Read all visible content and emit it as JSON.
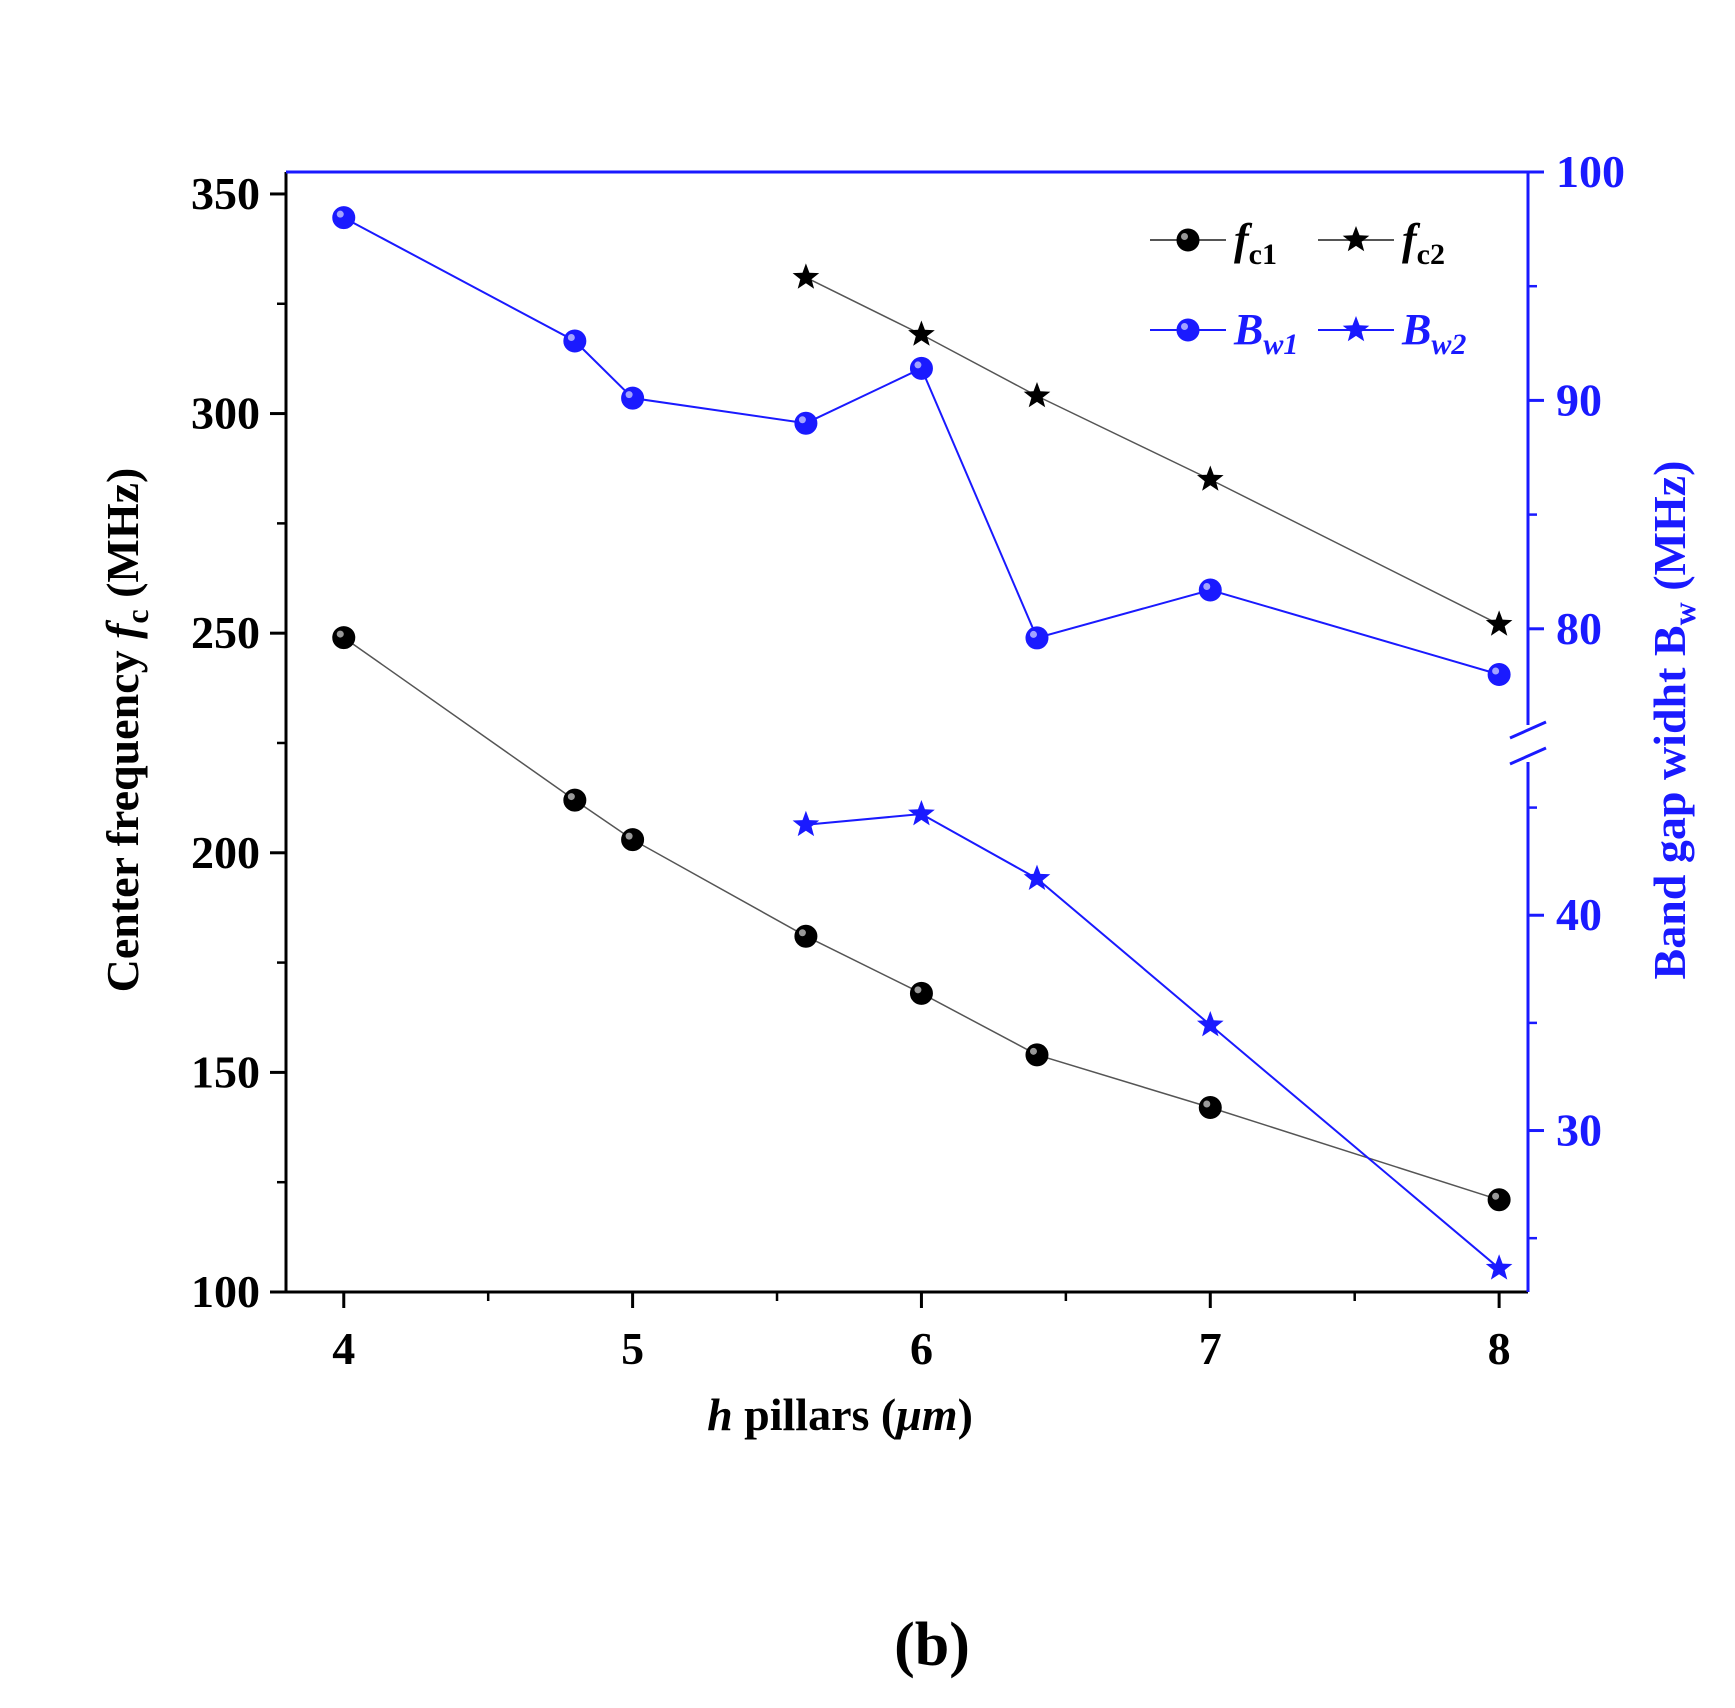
{
  "colors": {
    "left_axis": "#000000",
    "right_axis": "#1a1aff",
    "fc_series": "#000000",
    "bw_series": "#1a1aff",
    "fc_line": "#555555"
  },
  "chart_data": {
    "type": "line",
    "panel_label": "(b)",
    "xlabel": {
      "italic_part": "h",
      "regular_part": " pillars (",
      "unit": "μm",
      "close": ")"
    },
    "ylabel_left": {
      "prefix": "Center frequency ",
      "symbol": "f",
      "subscript": "c",
      "unit": " (MHz)"
    },
    "ylabel_right": {
      "prefix": "Band gap widht B",
      "subscript": "w",
      "unit": "  (MHz)"
    },
    "xlim": [
      3.8,
      8.1
    ],
    "xticks": [
      4,
      5,
      6,
      7,
      8
    ],
    "ylim_left": [
      100,
      355
    ],
    "yticks_left": [
      100,
      150,
      200,
      250,
      300,
      350
    ],
    "right_axis": {
      "upper_segment": {
        "range": [
          75,
          100
        ],
        "ticks": [
          80,
          90,
          100
        ]
      },
      "lower_segment": {
        "range": [
          22.5,
          48
        ],
        "ticks": [
          30,
          40
        ]
      },
      "break_symbol": "//"
    },
    "series": [
      {
        "name": "f_c1",
        "label_main": "f",
        "label_sub": "c1",
        "axis": "left",
        "marker": "circle",
        "x": [
          4,
          4.8,
          5,
          5.6,
          6,
          6.4,
          7,
          8
        ],
        "y": [
          249,
          212,
          203,
          181,
          168,
          154,
          142,
          121
        ]
      },
      {
        "name": "f_c2",
        "label_main": "f",
        "label_sub": "c2",
        "axis": "left",
        "marker": "star",
        "x": [
          5.6,
          6,
          6.4,
          7,
          8
        ],
        "y": [
          331,
          318,
          304,
          285,
          252
        ]
      },
      {
        "name": "B_w1",
        "label_main": "B",
        "label_sub": "w1",
        "axis": "right",
        "marker": "circle",
        "x": [
          4,
          4.8,
          5,
          5.6,
          6,
          6.4,
          7,
          8
        ],
        "y": [
          98,
          92.6,
          90.1,
          89,
          91.4,
          79.6,
          81.7,
          78
        ]
      },
      {
        "name": "B_w2",
        "label_main": "B",
        "label_sub": "w2",
        "axis": "right",
        "marker": "star",
        "x": [
          5.6,
          6,
          6.4,
          7,
          8
        ],
        "y": [
          44.2,
          44.7,
          41.7,
          34.9,
          23.6
        ]
      }
    ],
    "legend": {
      "position": "top-right",
      "columns": 2
    }
  }
}
